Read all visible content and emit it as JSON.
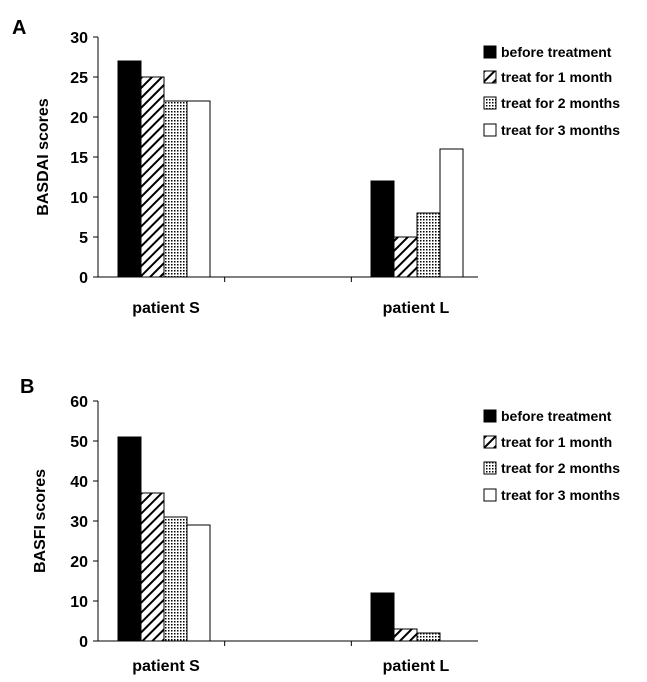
{
  "chart_data": [
    {
      "type": "bar",
      "panel_label": "A",
      "ylabel": "BASDAI scores",
      "ylim": [
        0,
        30
      ],
      "yticks": [
        0,
        5,
        10,
        15,
        20,
        25,
        30
      ],
      "categories": [
        "patient S",
        "patient L"
      ],
      "series": [
        {
          "name": "before treatment",
          "fill": "solid-black",
          "values": [
            27,
            12
          ]
        },
        {
          "name": "treat for 1 month",
          "fill": "diagonal-hatch",
          "values": [
            25,
            5
          ]
        },
        {
          "name": "treat for 2 months",
          "fill": "dotted",
          "values": [
            22,
            8
          ]
        },
        {
          "name": "treat for 3 months",
          "fill": "white",
          "values": [
            22,
            16
          ]
        }
      ],
      "legend": "right",
      "grid": false
    },
    {
      "type": "bar",
      "panel_label": "B",
      "ylabel": "BASFI scores",
      "ylim": [
        0,
        60
      ],
      "yticks": [
        0,
        10,
        20,
        30,
        40,
        50,
        60
      ],
      "categories": [
        "patient S",
        "patient L"
      ],
      "series": [
        {
          "name": "before treatment",
          "fill": "solid-black",
          "values": [
            51,
            12
          ]
        },
        {
          "name": "treat for 1 month",
          "fill": "diagonal-hatch",
          "values": [
            37,
            3
          ]
        },
        {
          "name": "treat for 2 months",
          "fill": "dotted",
          "values": [
            31,
            2
          ]
        },
        {
          "name": "treat for 3 months",
          "fill": "white",
          "values": [
            29,
            0
          ]
        }
      ],
      "legend": "right",
      "grid": false
    }
  ]
}
